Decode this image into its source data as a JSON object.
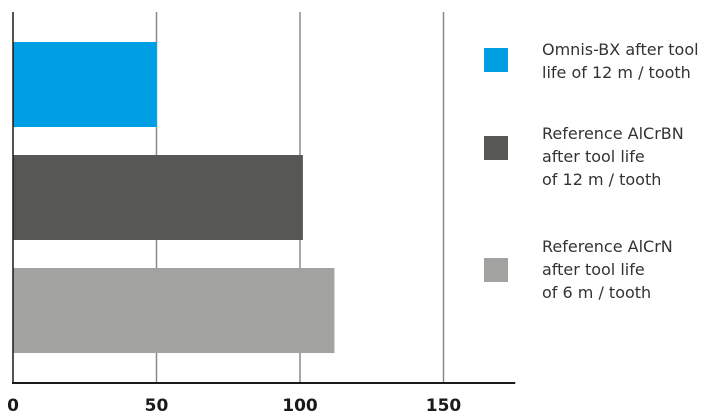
{
  "chart_data": {
    "type": "bar",
    "orientation": "horizontal",
    "categories": [
      "Omnis-BX",
      "Reference AlCrBN",
      "Reference AlCrN"
    ],
    "values": [
      50,
      101,
      112
    ],
    "colors": [
      "#009fe3",
      "#575756",
      "#a2a2a1"
    ],
    "xlim": [
      0,
      175
    ],
    "xticks": [
      0,
      50,
      100,
      150
    ],
    "grid": true,
    "legend_placement": "right",
    "legend": [
      {
        "label": "Omnis-BX after tool\nlife of 12 m / tooth",
        "color": "#009fe3"
      },
      {
        "label": "Reference AlCrBN\nafter tool life\nof 12 m / tooth",
        "color": "#575756"
      },
      {
        "label": "Reference AlCrN\nafter tool life\nof 6 m / tooth",
        "color": "#a2a2a1"
      }
    ]
  }
}
